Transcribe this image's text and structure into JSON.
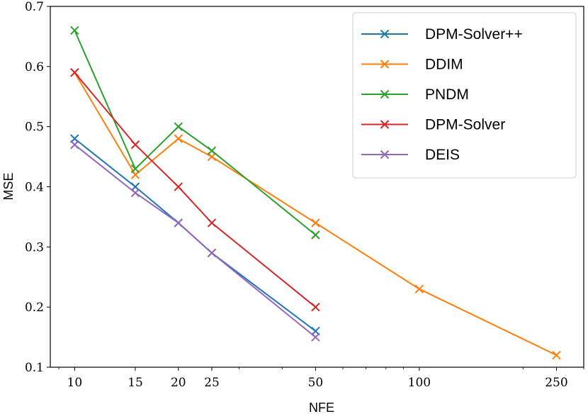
{
  "chart_data": {
    "type": "line",
    "xlabel": "NFE",
    "ylabel": "MSE",
    "x_scale": "log",
    "xlim": [
      8.5,
      300
    ],
    "ylim": [
      0.1,
      0.7
    ],
    "x_ticks": [
      10,
      15,
      20,
      25,
      50,
      100,
      250
    ],
    "x_tick_labels": [
      "10",
      "15",
      "20",
      "25",
      "50",
      "100",
      "250"
    ],
    "y_ticks": [
      0.1,
      0.2,
      0.3,
      0.4,
      0.5,
      0.6,
      0.7
    ],
    "y_tick_labels": [
      "0.1",
      "0.2",
      "0.3",
      "0.4",
      "0.5",
      "0.6",
      "0.7"
    ],
    "grid": false,
    "legend_position": "top-right",
    "marker": "x",
    "series": [
      {
        "name": "DPM-Solver++",
        "color": "#1f77b4",
        "x": [
          10,
          15,
          20,
          25,
          50
        ],
        "values": [
          0.48,
          0.4,
          0.34,
          0.29,
          0.16
        ]
      },
      {
        "name": "DDIM",
        "color": "#ff7f0e",
        "x": [
          10,
          15,
          20,
          25,
          50,
          100,
          250
        ],
        "values": [
          0.59,
          0.42,
          0.48,
          0.45,
          0.34,
          0.23,
          0.12
        ]
      },
      {
        "name": "PNDM",
        "color": "#2ca02c",
        "x": [
          10,
          15,
          20,
          25,
          50
        ],
        "values": [
          0.66,
          0.43,
          0.5,
          0.46,
          0.32
        ]
      },
      {
        "name": "DPM-Solver",
        "color": "#d62728",
        "x": [
          10,
          15,
          20,
          25,
          50
        ],
        "values": [
          0.59,
          0.47,
          0.4,
          0.34,
          0.2
        ]
      },
      {
        "name": "DEIS",
        "color": "#9467bd",
        "x": [
          10,
          15,
          20,
          25,
          50
        ],
        "values": [
          0.47,
          0.39,
          0.34,
          0.29,
          0.15
        ]
      }
    ]
  }
}
